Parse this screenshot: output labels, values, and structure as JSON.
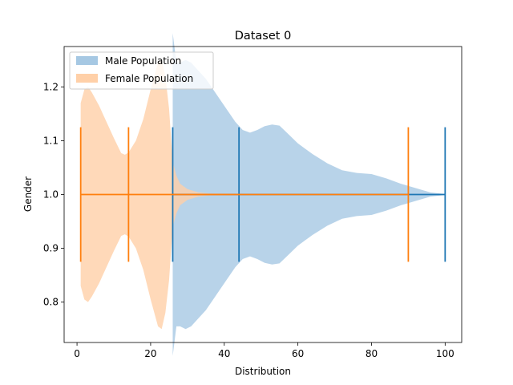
{
  "chart_data": {
    "type": "violin",
    "orientation": "horizontal",
    "title": "Dataset 0",
    "xlabel": "Distribution",
    "ylabel": "Gender",
    "xlim": [
      -3.5,
      104.5
    ],
    "ylim": [
      0.725,
      1.275
    ],
    "xticks": [
      0,
      20,
      40,
      60,
      80,
      100
    ],
    "yticks": [
      0.8,
      0.9,
      1.0,
      1.1,
      1.2
    ],
    "grid": false,
    "legend_position": "upper-left",
    "position": 1.0,
    "series": [
      {
        "name": "Male Population",
        "color": "#1f77b4",
        "fill_color": "#a6c8e3",
        "min": 26,
        "median": 44,
        "max": 100,
        "profile": [
          [
            26,
            0.3
          ],
          [
            27,
            0.245
          ],
          [
            28,
            0.245
          ],
          [
            29.5,
            0.25
          ],
          [
            31,
            0.245
          ],
          [
            33,
            0.23
          ],
          [
            35,
            0.215
          ],
          [
            37,
            0.195
          ],
          [
            39,
            0.175
          ],
          [
            41,
            0.155
          ],
          [
            43,
            0.135
          ],
          [
            45,
            0.12
          ],
          [
            47,
            0.115
          ],
          [
            49,
            0.12
          ],
          [
            51,
            0.127
          ],
          [
            53,
            0.13
          ],
          [
            55,
            0.128
          ],
          [
            57,
            0.115
          ],
          [
            60,
            0.095
          ],
          [
            64,
            0.075
          ],
          [
            68,
            0.058
          ],
          [
            72,
            0.045
          ],
          [
            76,
            0.04
          ],
          [
            80,
            0.038
          ],
          [
            84,
            0.03
          ],
          [
            88,
            0.02
          ],
          [
            92,
            0.012
          ],
          [
            96,
            0.004
          ],
          [
            100,
            0.001
          ]
        ]
      },
      {
        "name": "Female Population",
        "color": "#ff7f0e",
        "fill_color": "#ffd0a8",
        "min": 1,
        "median": 14,
        "max": 90,
        "profile": [
          [
            1,
            0.17
          ],
          [
            2,
            0.195
          ],
          [
            3,
            0.2
          ],
          [
            4,
            0.19
          ],
          [
            6,
            0.165
          ],
          [
            8,
            0.135
          ],
          [
            10,
            0.105
          ],
          [
            12,
            0.077
          ],
          [
            13,
            0.074
          ],
          [
            14,
            0.078
          ],
          [
            16,
            0.1
          ],
          [
            18,
            0.14
          ],
          [
            20,
            0.195
          ],
          [
            22,
            0.245
          ],
          [
            23,
            0.25
          ],
          [
            24,
            0.22
          ],
          [
            25,
            0.16
          ],
          [
            26,
            0.06
          ],
          [
            27,
            0.035
          ],
          [
            28,
            0.02
          ],
          [
            30,
            0.01
          ],
          [
            33,
            0.004
          ],
          [
            36,
            0.002
          ],
          [
            45,
            0.0015
          ],
          [
            60,
            0.001
          ],
          [
            75,
            0.001
          ],
          [
            90,
            0.0005
          ]
        ]
      }
    ]
  }
}
